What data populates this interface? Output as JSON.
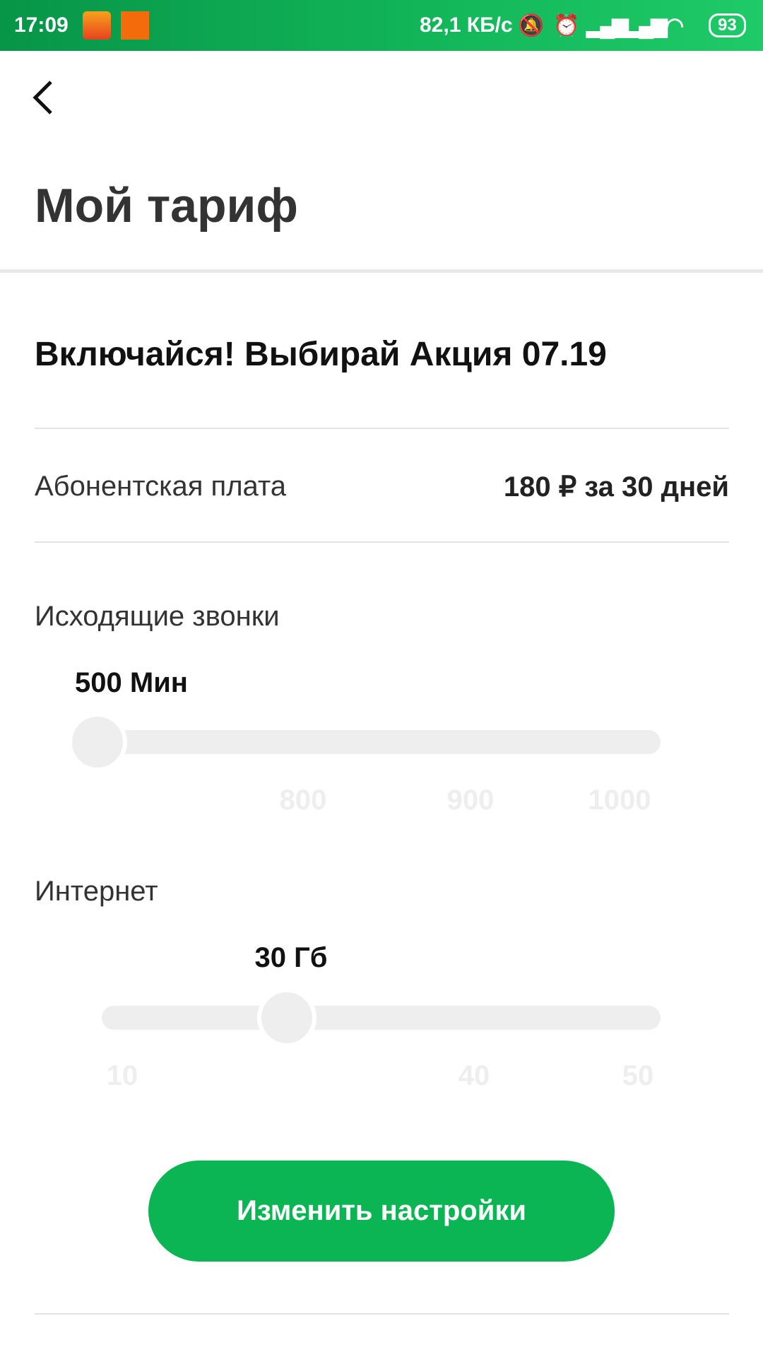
{
  "status_bar": {
    "time": "17:09",
    "net_speed": "82,1 КБ/с",
    "battery": "93",
    "icons": [
      "aliexpress-icon",
      "mi-icon",
      "mute-icon",
      "alarm-icon",
      "signal-icon",
      "signal-icon",
      "wifi-icon",
      "battery-icon"
    ]
  },
  "header": {
    "back_icon": "chevron-left-icon",
    "title": "Мой тариф"
  },
  "tariff": {
    "name": "Включайся! Выбирай Акция 07.19",
    "fee_label": "Абонентская плата",
    "fee_value": "180 ₽ за 30 дней"
  },
  "calls": {
    "label": "Исходящие звонки",
    "value": "500 Мин",
    "ticks": [
      "800",
      "900",
      "1000"
    ],
    "position": 0
  },
  "internet": {
    "label": "Интернет",
    "value": "30 Гб",
    "ticks": [
      "10",
      "40",
      "50"
    ],
    "position": 0.33
  },
  "button": {
    "label": "Изменить настройки"
  },
  "colors": {
    "accent": "#0bb553",
    "track": "#eeeeee"
  }
}
